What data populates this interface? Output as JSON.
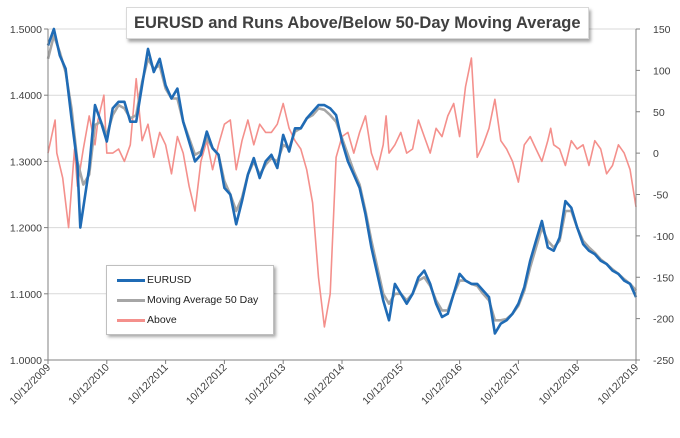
{
  "chart_data": {
    "type": "line",
    "title": "EURUSD and Runs Above/Below 50-Day Moving Average",
    "xlabel": "",
    "ylabel": "",
    "y2label": "",
    "ylim": [
      1.0,
      1.5
    ],
    "y2lim": [
      -250,
      150
    ],
    "yticks": [
      "1.0000",
      "1.1000",
      "1.2000",
      "1.3000",
      "1.4000",
      "1.5000"
    ],
    "y2ticks": [
      "-250",
      "-200",
      "-150",
      "-100",
      "-50",
      "0",
      "50",
      "100",
      "150"
    ],
    "x_tick_labels": [
      "10/12/2009",
      "10/12/2010",
      "10/12/2011",
      "10/12/2012",
      "10/12/2013",
      "10/12/2014",
      "10/12/2015",
      "10/12/2016",
      "10/12/2017",
      "10/12/2018",
      "10/12/2019"
    ],
    "x_tick_positions": [
      2009,
      2010,
      2011,
      2012,
      2013,
      2014,
      2015,
      2016,
      2017,
      2018,
      2019
    ],
    "xlim": [
      2009,
      2019
    ],
    "legend_position": "lower-left",
    "series": [
      {
        "name": "EURUSD",
        "axis": "left",
        "color": "#1f6bb5",
        "x": [
          2009.0,
          2009.1,
          2009.2,
          2009.3,
          2009.4,
          2009.5,
          2009.55,
          2009.6,
          2009.7,
          2009.8,
          2009.9,
          2010.0,
          2010.1,
          2010.2,
          2010.3,
          2010.4,
          2010.5,
          2010.6,
          2010.7,
          2010.8,
          2010.9,
          2011.0,
          2011.1,
          2011.2,
          2011.3,
          2011.4,
          2011.5,
          2011.6,
          2011.7,
          2011.8,
          2011.9,
          2012.0,
          2012.1,
          2012.2,
          2012.3,
          2012.4,
          2012.5,
          2012.6,
          2012.7,
          2012.8,
          2012.9,
          2013.0,
          2013.1,
          2013.2,
          2013.3,
          2013.4,
          2013.5,
          2013.6,
          2013.7,
          2013.8,
          2013.9,
          2014.0,
          2014.1,
          2014.2,
          2014.3,
          2014.4,
          2014.5,
          2014.6,
          2014.7,
          2014.8,
          2014.9,
          2015.0,
          2015.1,
          2015.2,
          2015.3,
          2015.4,
          2015.5,
          2015.6,
          2015.7,
          2015.8,
          2015.9,
          2016.0,
          2016.1,
          2016.2,
          2016.3,
          2016.4,
          2016.5,
          2016.6,
          2016.7,
          2016.8,
          2016.9,
          2017.0,
          2017.1,
          2017.2,
          2017.3,
          2017.4,
          2017.5,
          2017.6,
          2017.7,
          2017.8,
          2017.9,
          2018.0,
          2018.1,
          2018.2,
          2018.3,
          2018.4,
          2018.5,
          2018.6,
          2018.7,
          2018.8,
          2018.9,
          2019.0
        ],
        "values": [
          1.475,
          1.5,
          1.46,
          1.44,
          1.365,
          1.295,
          1.2,
          1.23,
          1.29,
          1.385,
          1.36,
          1.33,
          1.38,
          1.39,
          1.39,
          1.36,
          1.36,
          1.415,
          1.47,
          1.435,
          1.455,
          1.415,
          1.395,
          1.41,
          1.36,
          1.33,
          1.3,
          1.31,
          1.345,
          1.32,
          1.31,
          1.26,
          1.25,
          1.205,
          1.24,
          1.28,
          1.305,
          1.275,
          1.3,
          1.31,
          1.29,
          1.34,
          1.315,
          1.35,
          1.35,
          1.365,
          1.375,
          1.385,
          1.385,
          1.38,
          1.37,
          1.33,
          1.3,
          1.28,
          1.26,
          1.22,
          1.17,
          1.13,
          1.09,
          1.06,
          1.115,
          1.1,
          1.085,
          1.1,
          1.125,
          1.135,
          1.115,
          1.085,
          1.065,
          1.07,
          1.1,
          1.13,
          1.12,
          1.115,
          1.115,
          1.105,
          1.095,
          1.04,
          1.055,
          1.06,
          1.07,
          1.085,
          1.11,
          1.15,
          1.18,
          1.21,
          1.17,
          1.165,
          1.185,
          1.24,
          1.23,
          1.2,
          1.175,
          1.165,
          1.16,
          1.15,
          1.145,
          1.135,
          1.13,
          1.12,
          1.115,
          1.095
        ]
      },
      {
        "name": "Moving Average 50 Day",
        "axis": "left",
        "color": "#a6a6a6",
        "x": [
          2009.0,
          2009.1,
          2009.2,
          2009.3,
          2009.4,
          2009.5,
          2009.6,
          2009.7,
          2009.8,
          2009.9,
          2010.0,
          2010.1,
          2010.2,
          2010.3,
          2010.4,
          2010.5,
          2010.6,
          2010.7,
          2010.8,
          2010.9,
          2011.0,
          2011.1,
          2011.2,
          2011.3,
          2011.4,
          2011.5,
          2011.6,
          2011.7,
          2011.8,
          2011.9,
          2012.0,
          2012.1,
          2012.2,
          2012.3,
          2012.4,
          2012.5,
          2012.6,
          2012.7,
          2012.8,
          2012.9,
          2013.0,
          2013.1,
          2013.2,
          2013.3,
          2013.4,
          2013.5,
          2013.6,
          2013.7,
          2013.8,
          2013.9,
          2014.0,
          2014.1,
          2014.2,
          2014.3,
          2014.4,
          2014.5,
          2014.6,
          2014.7,
          2014.8,
          2014.9,
          2015.0,
          2015.1,
          2015.2,
          2015.3,
          2015.4,
          2015.5,
          2015.6,
          2015.7,
          2015.8,
          2015.9,
          2016.0,
          2016.1,
          2016.2,
          2016.3,
          2016.4,
          2016.5,
          2016.6,
          2016.7,
          2016.8,
          2016.9,
          2017.0,
          2017.1,
          2017.2,
          2017.3,
          2017.4,
          2017.5,
          2017.6,
          2017.7,
          2017.8,
          2017.9,
          2018.0,
          2018.1,
          2018.2,
          2018.3,
          2018.4,
          2018.5,
          2018.6,
          2018.7,
          2018.8,
          2018.9,
          2019.0
        ],
        "values": [
          1.455,
          1.49,
          1.465,
          1.435,
          1.38,
          1.3,
          1.265,
          1.28,
          1.355,
          1.36,
          1.34,
          1.37,
          1.385,
          1.38,
          1.365,
          1.37,
          1.42,
          1.455,
          1.44,
          1.445,
          1.41,
          1.395,
          1.395,
          1.36,
          1.335,
          1.31,
          1.315,
          1.335,
          1.32,
          1.31,
          1.27,
          1.25,
          1.225,
          1.245,
          1.28,
          1.3,
          1.28,
          1.295,
          1.305,
          1.3,
          1.325,
          1.32,
          1.345,
          1.35,
          1.365,
          1.37,
          1.38,
          1.378,
          1.37,
          1.36,
          1.335,
          1.31,
          1.285,
          1.265,
          1.225,
          1.18,
          1.14,
          1.1,
          1.085,
          1.1,
          1.1,
          1.09,
          1.1,
          1.12,
          1.125,
          1.112,
          1.09,
          1.075,
          1.075,
          1.1,
          1.12,
          1.12,
          1.115,
          1.112,
          1.1,
          1.09,
          1.06,
          1.06,
          1.062,
          1.07,
          1.082,
          1.105,
          1.14,
          1.17,
          1.2,
          1.18,
          1.17,
          1.18,
          1.225,
          1.225,
          1.2,
          1.18,
          1.17,
          1.162,
          1.152,
          1.145,
          1.137,
          1.13,
          1.122,
          1.115,
          1.105
        ]
      },
      {
        "name": "Above",
        "axis": "right",
        "color": "#f4908c",
        "x": [
          2009.0,
          2009.12,
          2009.15,
          2009.25,
          2009.35,
          2009.45,
          2009.5,
          2009.6,
          2009.7,
          2009.8,
          2009.85,
          2009.95,
          2010.0,
          2010.1,
          2010.2,
          2010.3,
          2010.4,
          2010.5,
          2010.6,
          2010.7,
          2010.8,
          2010.9,
          2011.0,
          2011.1,
          2011.2,
          2011.3,
          2011.4,
          2011.5,
          2011.6,
          2011.7,
          2011.8,
          2011.9,
          2012.0,
          2012.1,
          2012.2,
          2012.3,
          2012.4,
          2012.5,
          2012.6,
          2012.7,
          2012.8,
          2012.9,
          2013.0,
          2013.1,
          2013.2,
          2013.3,
          2013.4,
          2013.5,
          2013.6,
          2013.7,
          2013.8,
          2013.9,
          2014.0,
          2014.1,
          2014.2,
          2014.3,
          2014.4,
          2014.5,
          2014.6,
          2014.7,
          2014.75,
          2014.8,
          2014.9,
          2015.0,
          2015.1,
          2015.2,
          2015.3,
          2015.4,
          2015.5,
          2015.6,
          2015.7,
          2015.8,
          2015.9,
          2016.0,
          2016.1,
          2016.2,
          2016.3,
          2016.4,
          2016.5,
          2016.6,
          2016.7,
          2016.8,
          2016.9,
          2017.0,
          2017.1,
          2017.2,
          2017.3,
          2017.4,
          2017.5,
          2017.55,
          2017.6,
          2017.7,
          2017.8,
          2017.9,
          2018.0,
          2018.1,
          2018.2,
          2018.3,
          2018.4,
          2018.5,
          2018.6,
          2018.7,
          2018.8,
          2018.9,
          2019.0
        ],
        "values": [
          0,
          40,
          0,
          -30,
          -90,
          5,
          -40,
          5,
          45,
          10,
          40,
          70,
          0,
          0,
          5,
          -10,
          10,
          90,
          15,
          35,
          -5,
          25,
          10,
          -25,
          20,
          0,
          -40,
          -70,
          -10,
          15,
          -20,
          10,
          35,
          40,
          -20,
          15,
          40,
          10,
          35,
          25,
          25,
          35,
          60,
          30,
          15,
          5,
          -20,
          -60,
          -150,
          -210,
          -170,
          -5,
          20,
          25,
          0,
          25,
          45,
          0,
          -20,
          10,
          45,
          0,
          10,
          25,
          0,
          5,
          40,
          20,
          0,
          30,
          20,
          45,
          60,
          20,
          80,
          115,
          -5,
          10,
          30,
          65,
          15,
          5,
          -10,
          -35,
          10,
          20,
          5,
          -10,
          15,
          30,
          10,
          5,
          -15,
          15,
          5,
          10,
          -15,
          15,
          5,
          -25,
          -15,
          10,
          0,
          -20,
          -65
        ]
      }
    ]
  }
}
